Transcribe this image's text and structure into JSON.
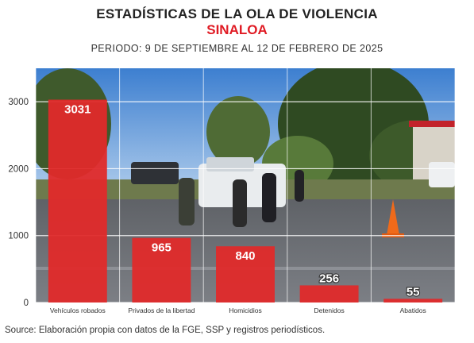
{
  "header": {
    "title": "ESTADÍSTICAS DE LA OLA DE VIOLENCIA",
    "subtitle": "SINALOA",
    "period": "PERIODO: 9 DE SEPTIEMBRE AL 12 DE FEBRERO DE 2025"
  },
  "footer": {
    "source": "Source: Elaboración propia con datos de la FGE, SSP y registros periodísticos."
  },
  "colors": {
    "bar": "#e02a2a",
    "grid": "#ffffff",
    "title": "#222222",
    "subtitle": "#e01b24"
  },
  "chart_data": {
    "type": "bar",
    "categories": [
      "Vehículos robados",
      "Privados de la libertad",
      "Homicidios",
      "Detenidos",
      "Abatidos"
    ],
    "values": [
      3031,
      965,
      840,
      256,
      55
    ],
    "title": "ESTADÍSTICAS DE LA OLA DE VIOLENCIA",
    "subtitle": "SINALOA",
    "xlabel": "",
    "ylabel": "",
    "ylim": [
      0,
      3500
    ],
    "yticks": [
      0,
      1000,
      2000,
      3000
    ],
    "grid": true,
    "legend": "none"
  }
}
